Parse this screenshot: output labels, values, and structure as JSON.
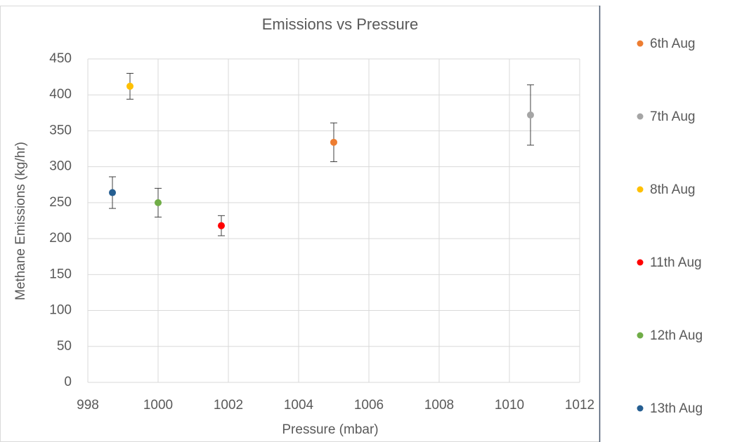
{
  "chart_data": {
    "type": "scatter",
    "title": "Emissions vs Pressure",
    "x_label": "Pressure (mbar)",
    "y_label": "Methane Emissions (kg/hr)",
    "xlim": [
      998,
      1012
    ],
    "xticks": [
      998,
      1000,
      1002,
      1004,
      1006,
      1008,
      1010,
      1012
    ],
    "ylim": [
      0,
      450
    ],
    "yticks": [
      0,
      50,
      100,
      150,
      200,
      250,
      300,
      350,
      400,
      450
    ],
    "grid": true,
    "legend": "right",
    "series": [
      {
        "name": "6th Aug",
        "color": "#ed7d31",
        "x": [
          1005.0
        ],
        "values": [
          334
        ],
        "errors": [
          27
        ]
      },
      {
        "name": "7th Aug",
        "color": "#a5a5a5",
        "x": [
          1010.6
        ],
        "values": [
          372
        ],
        "errors": [
          42
        ]
      },
      {
        "name": "8th Aug",
        "color": "#ffc000",
        "x": [
          999.2
        ],
        "values": [
          412
        ],
        "errors": [
          18
        ]
      },
      {
        "name": "11th Aug",
        "color": "#ff0000",
        "x": [
          1001.8
        ],
        "values": [
          218
        ],
        "errors": [
          14
        ]
      },
      {
        "name": "12th Aug",
        "color": "#70ad47",
        "x": [
          1000.0
        ],
        "values": [
          250
        ],
        "errors": [
          20
        ]
      },
      {
        "name": "13th Aug",
        "color": "#255e91",
        "x": [
          998.7
        ],
        "values": [
          264
        ],
        "errors": [
          22
        ]
      }
    ]
  }
}
